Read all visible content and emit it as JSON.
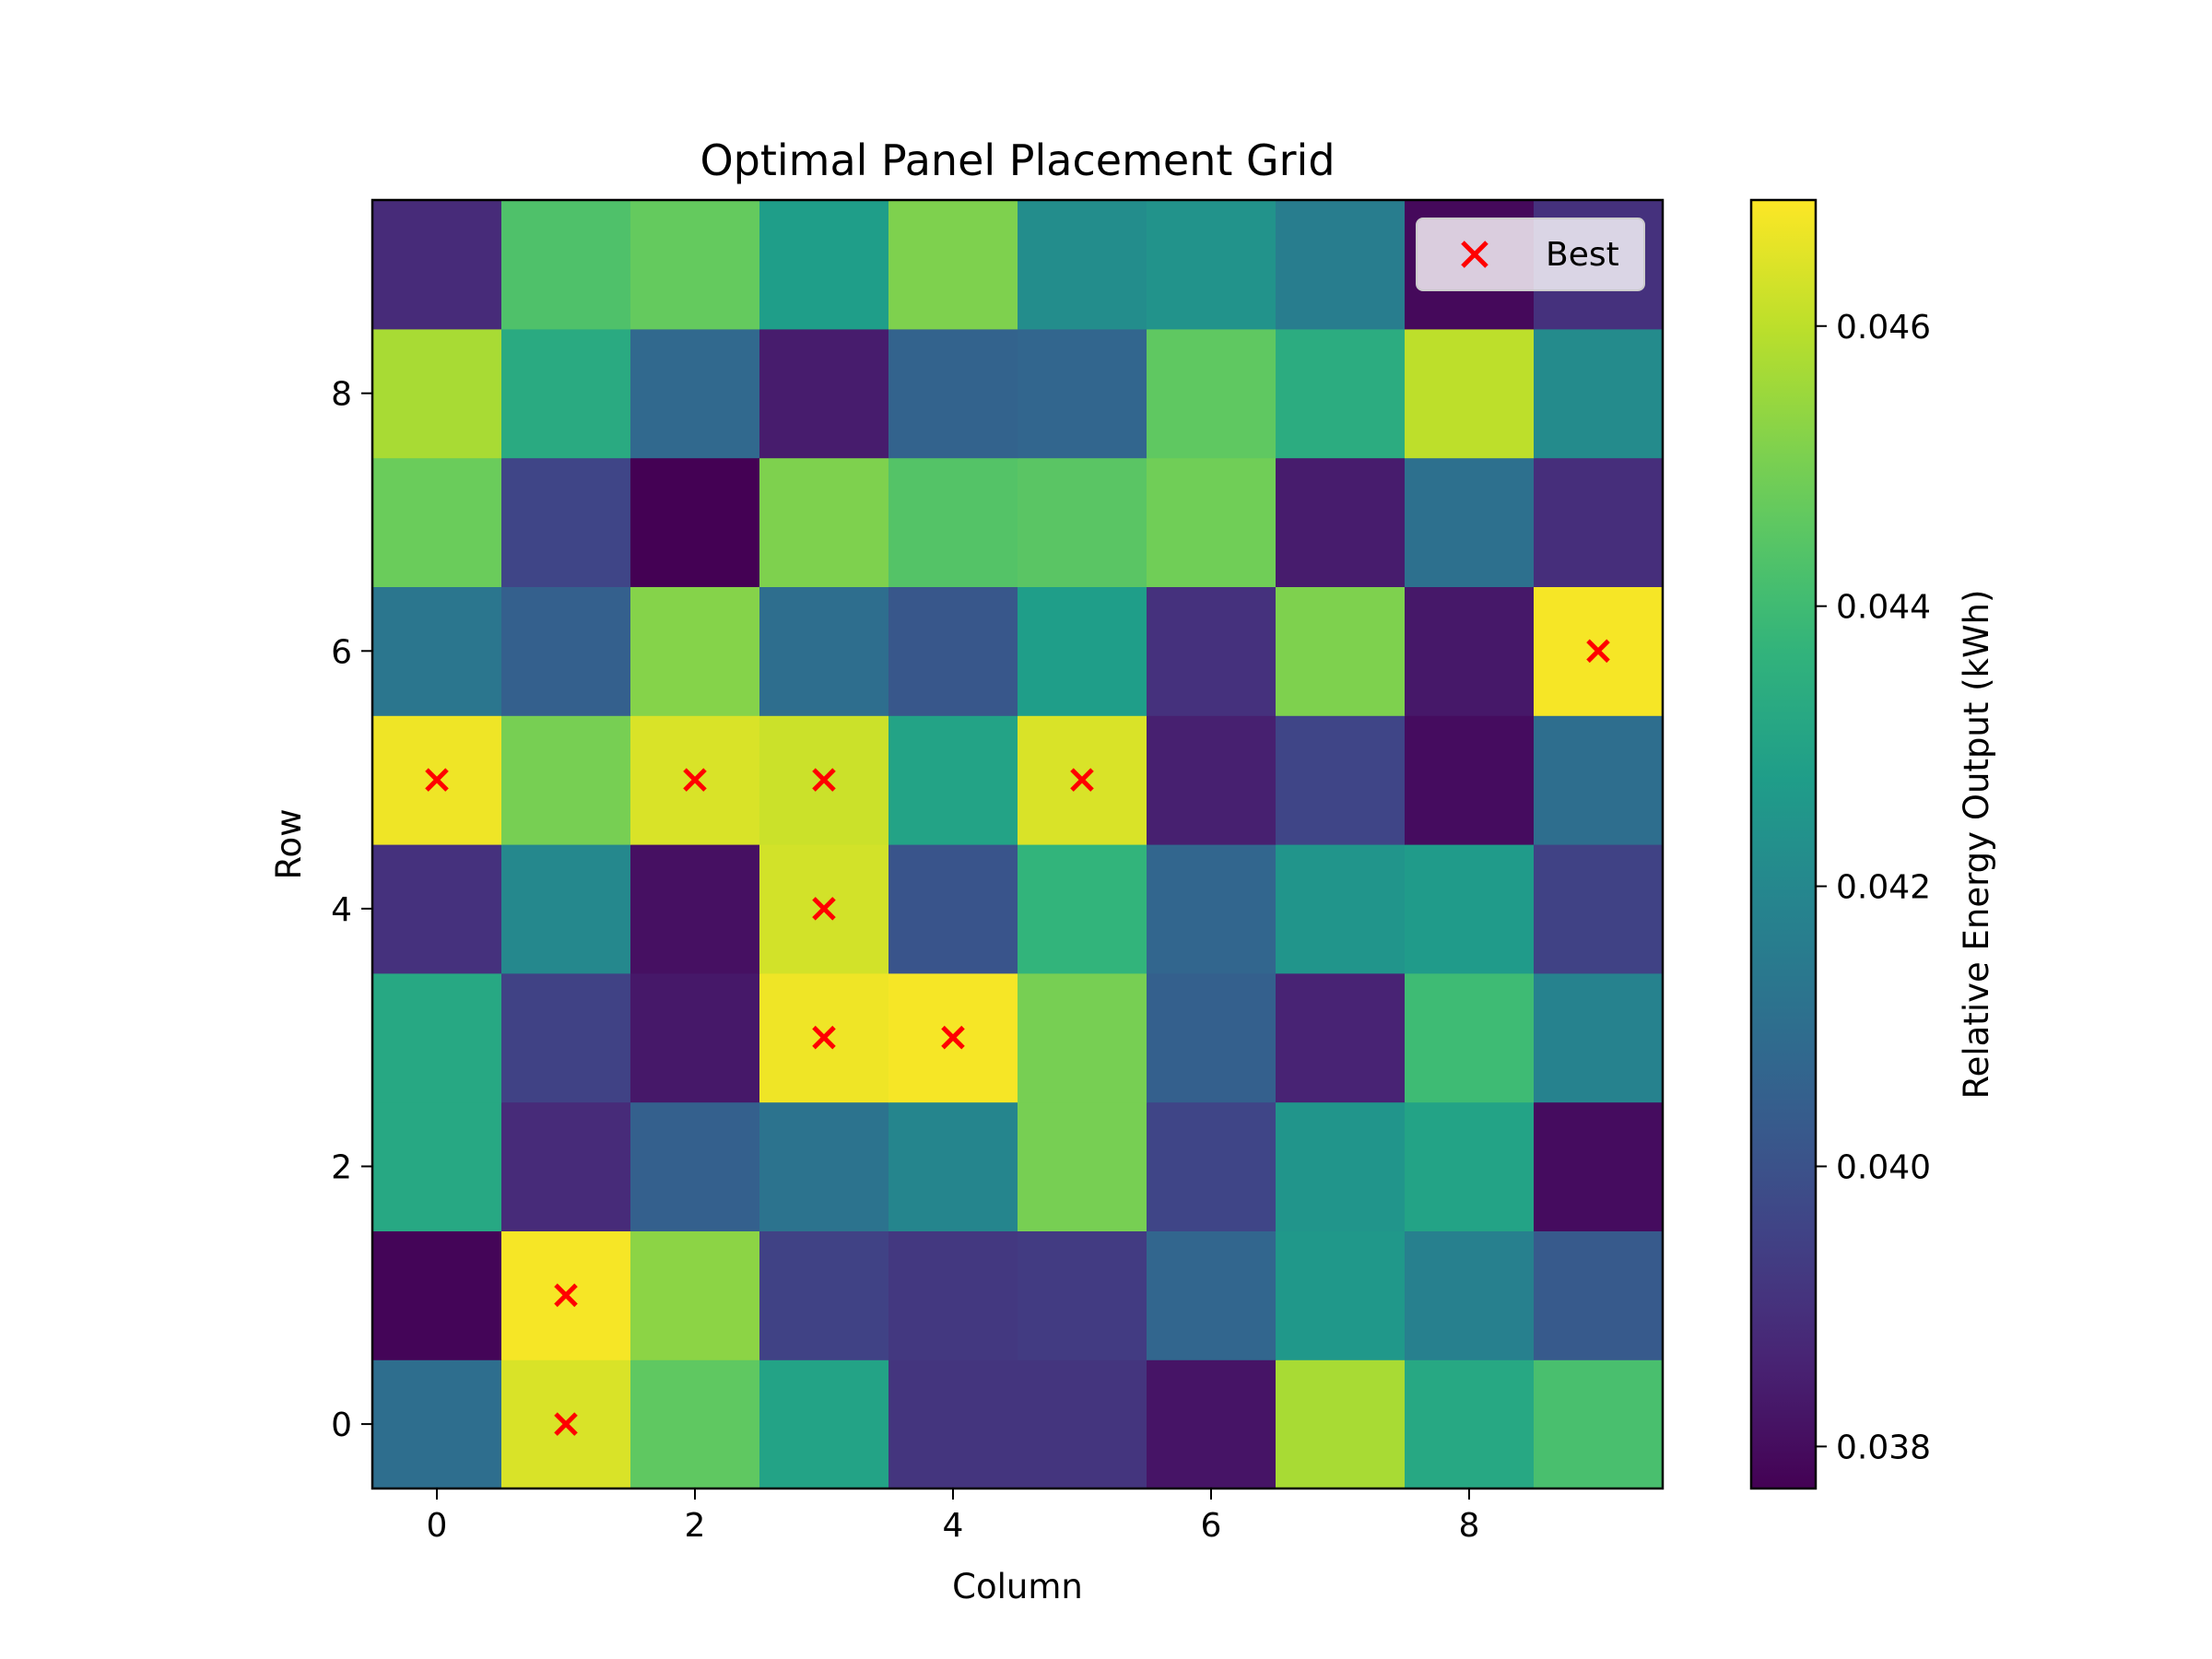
{
  "chart_data": {
    "type": "heatmap",
    "title": "Optimal Panel Placement Grid",
    "xlabel": "Column",
    "ylabel": "Row",
    "colorbar_label": "Relative Energy Output (kWh)",
    "colormap": "viridis",
    "x_ticks": [
      0,
      2,
      4,
      6,
      8
    ],
    "y_ticks": [
      0,
      2,
      4,
      6,
      8
    ],
    "xlim": [
      -0.5,
      9.5
    ],
    "ylim": [
      -0.5,
      9.5
    ],
    "color_range": [
      0.0377,
      0.0469
    ],
    "colorbar_ticks": [
      0.038,
      0.04,
      0.042,
      0.044,
      0.046
    ],
    "colorbar_tick_labels": [
      "0.038",
      "0.040",
      "0.042",
      "0.044",
      "0.046"
    ],
    "rows": [
      0,
      1,
      2,
      3,
      4,
      5,
      6,
      7,
      8,
      9
    ],
    "columns": [
      0,
      1,
      2,
      3,
      4,
      5,
      6,
      7,
      8,
      9
    ],
    "values": [
      [
        0.041,
        0.0464,
        0.0446,
        0.043,
        0.0391,
        0.0391,
        0.0382,
        0.0457,
        0.0432,
        0.0442
      ],
      [
        0.0378,
        0.0468,
        0.0453,
        0.0395,
        0.0392,
        0.0393,
        0.0407,
        0.0426,
        0.0417,
        0.0403
      ],
      [
        0.0432,
        0.0388,
        0.0405,
        0.0412,
        0.0419,
        0.045,
        0.0396,
        0.0425,
        0.043,
        0.038
      ],
      [
        0.0432,
        0.0395,
        0.0383,
        0.0467,
        0.0468,
        0.045,
        0.0405,
        0.0386,
        0.044,
        0.0418
      ],
      [
        0.039,
        0.042,
        0.0381,
        0.0463,
        0.0401,
        0.0437,
        0.0407,
        0.0425,
        0.0427,
        0.0395
      ],
      [
        0.0467,
        0.045,
        0.0464,
        0.0462,
        0.043,
        0.0464,
        0.0385,
        0.0396,
        0.038,
        0.041
      ],
      [
        0.0413,
        0.0405,
        0.0452,
        0.041,
        0.0402,
        0.0428,
        0.039,
        0.0451,
        0.0383,
        0.0468
      ],
      [
        0.0448,
        0.0396,
        0.0377,
        0.0451,
        0.0444,
        0.0445,
        0.0449,
        0.0384,
        0.0411,
        0.0389
      ],
      [
        0.0457,
        0.0433,
        0.0408,
        0.0384,
        0.0406,
        0.0407,
        0.0446,
        0.0434,
        0.046,
        0.0421
      ],
      [
        0.0388,
        0.0443,
        0.0447,
        0.0428,
        0.0451,
        0.0422,
        0.0424,
        0.0416,
        0.0379,
        0.039
      ]
    ],
    "series": [
      {
        "name": "Best",
        "marker": "x",
        "color": "#ff0000",
        "points": [
          [
            1,
            0
          ],
          [
            1,
            1
          ],
          [
            3,
            3
          ],
          [
            4,
            3
          ],
          [
            3,
            4
          ],
          [
            0,
            5
          ],
          [
            2,
            5
          ],
          [
            3,
            5
          ],
          [
            5,
            5
          ],
          [
            9,
            6
          ]
        ]
      }
    ],
    "legend_position": "upper right",
    "grid": false
  }
}
